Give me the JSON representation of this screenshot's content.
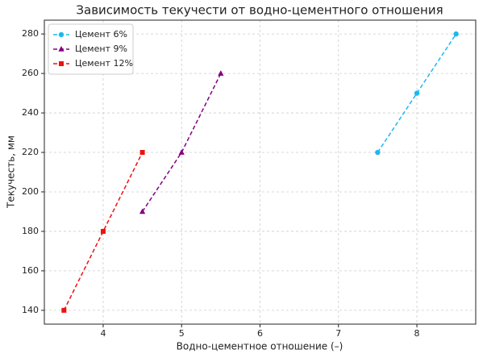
{
  "chart_data": {
    "type": "line",
    "title": "Зависимость текучести от водно-цементного отношения",
    "xlabel": "Водно-цементное отношение (–)",
    "ylabel": "Текучесть, мм",
    "series": [
      {
        "name": "Цемент 6%",
        "color": "#1cb8f0",
        "marker": "circle",
        "x": [
          7.5,
          8,
          8.5
        ],
        "values": [
          220,
          250,
          280
        ]
      },
      {
        "name": "Цемент 9%",
        "color": "#800080",
        "marker": "triangle",
        "x": [
          4.5,
          5,
          5.5
        ],
        "values": [
          190,
          220,
          260
        ]
      },
      {
        "name": "Цемент 12%",
        "color": "#ee1111",
        "marker": "square",
        "x": [
          3.5,
          4,
          4.5
        ],
        "values": [
          140,
          180,
          220
        ]
      }
    ],
    "xlim": [
      3.25,
      8.75
    ],
    "xticks": [
      4,
      5,
      6,
      7,
      8
    ],
    "ylim": [
      133,
      287
    ],
    "yticks": [
      140,
      160,
      180,
      200,
      220,
      240,
      260,
      280
    ],
    "grid": true,
    "legend": "upper left"
  }
}
